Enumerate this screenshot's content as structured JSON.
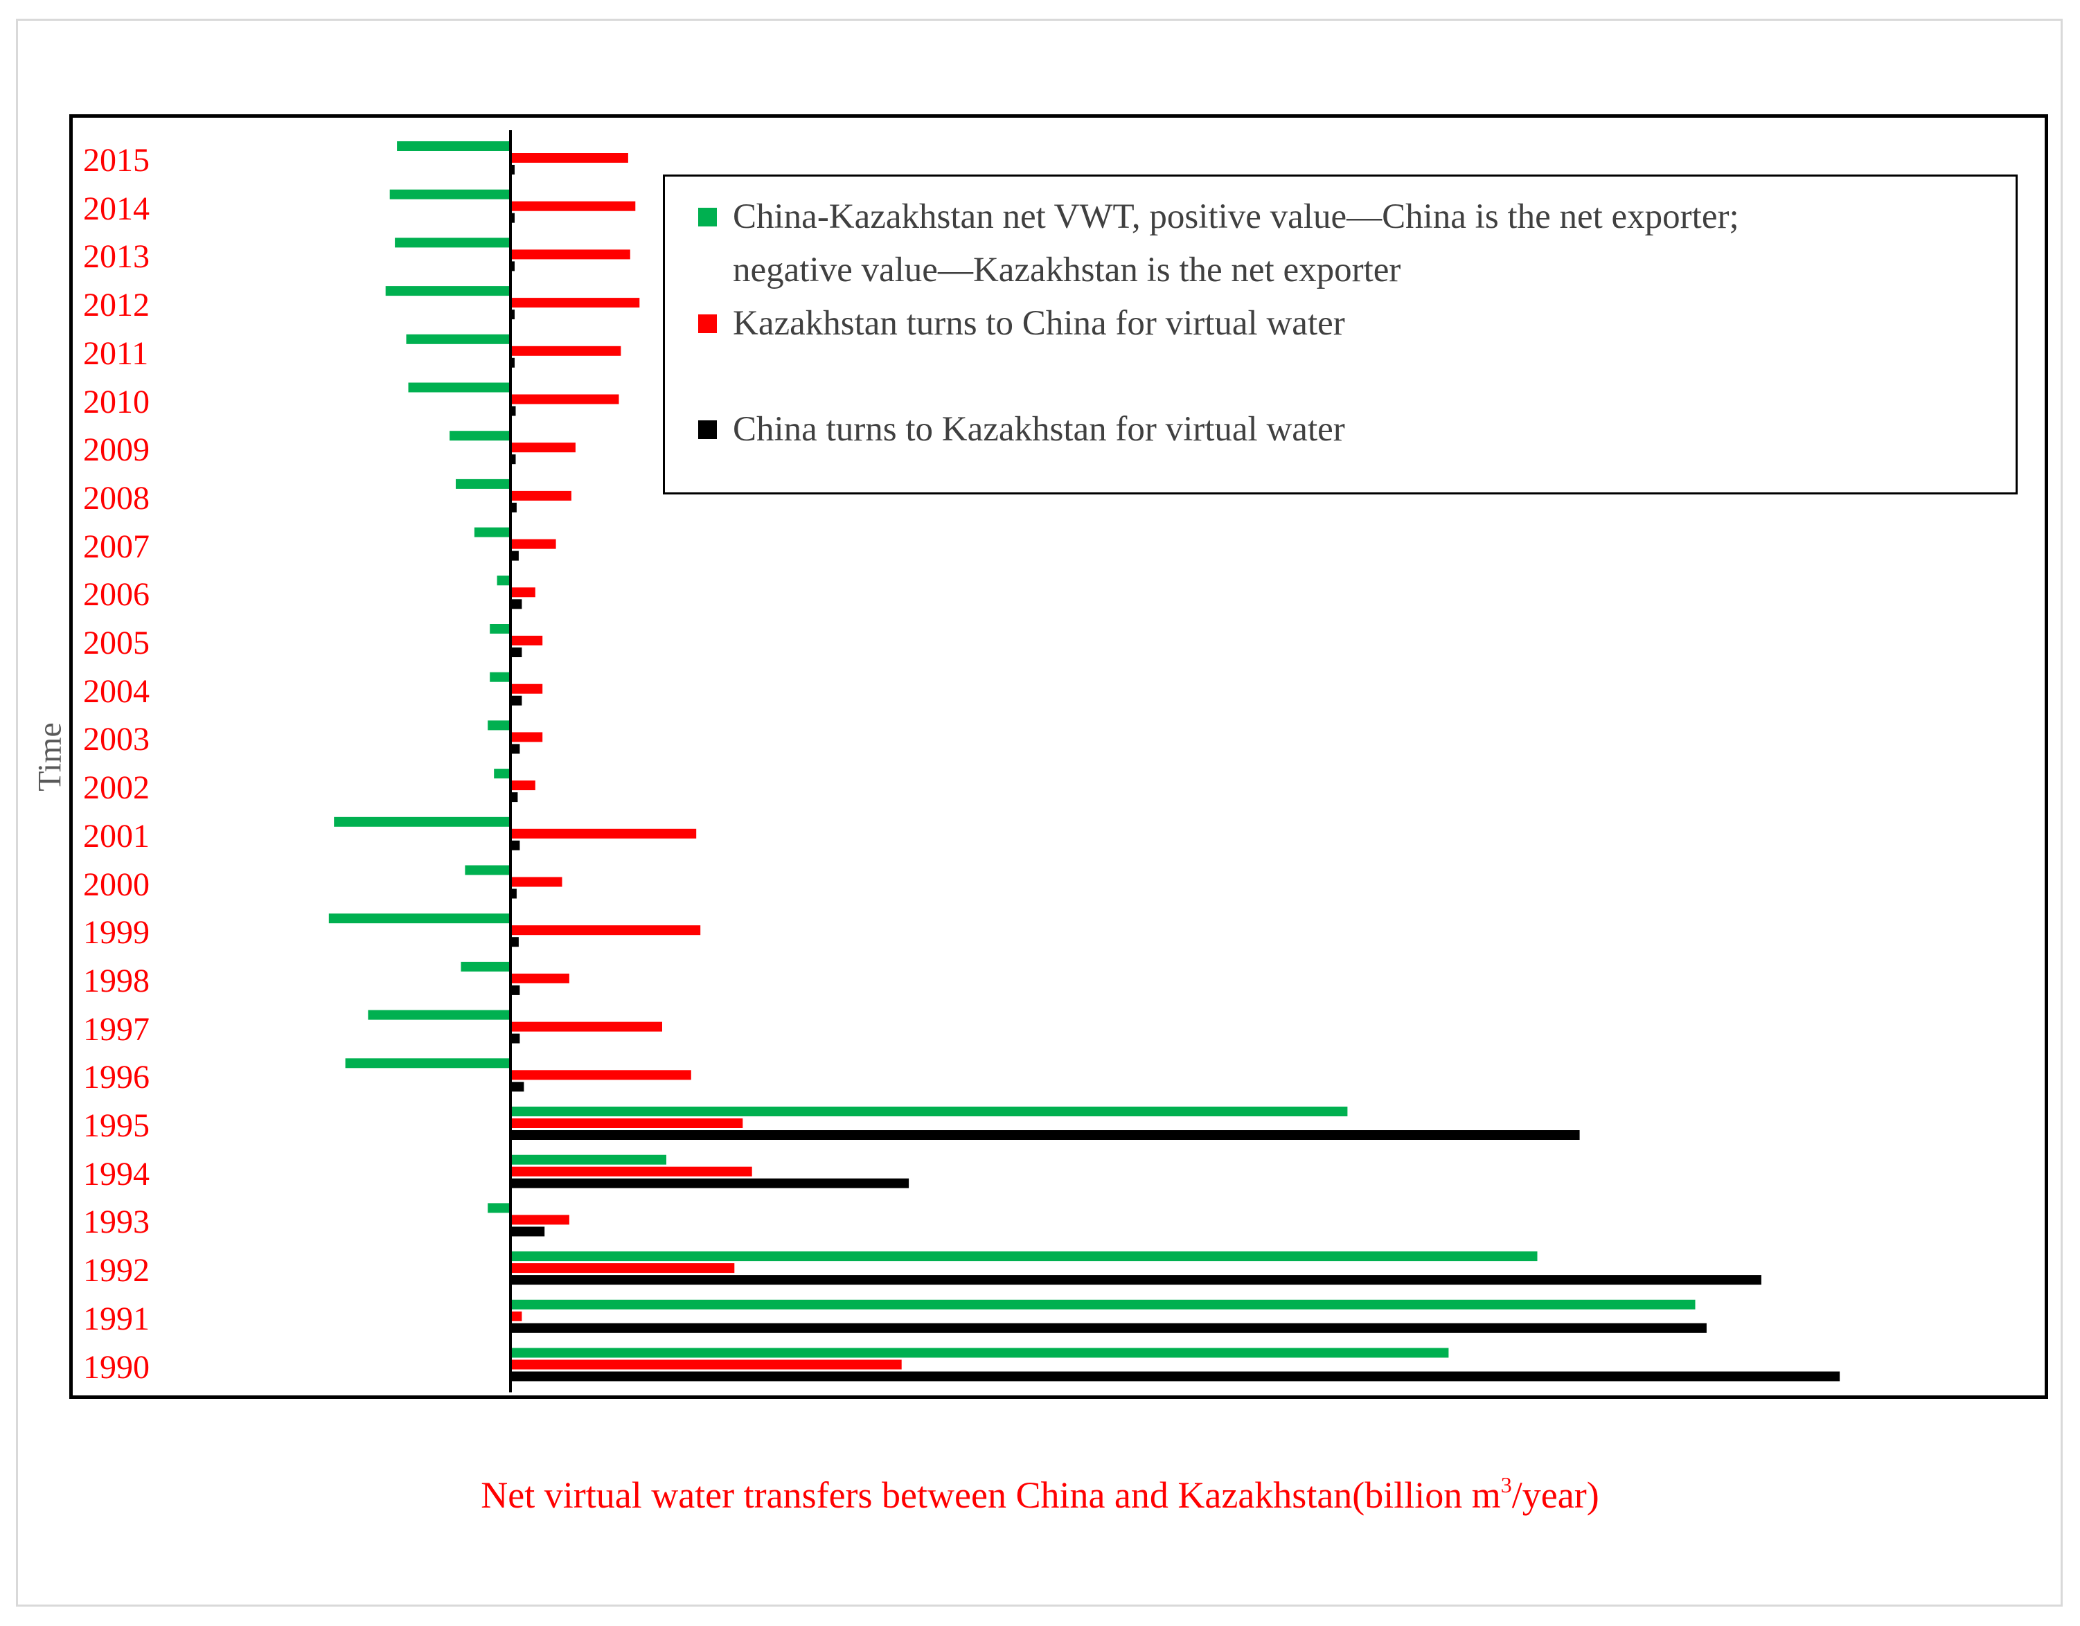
{
  "chart_data": {
    "type": "bar",
    "orientation": "horizontal",
    "title": "",
    "xlabel_main": "Net virtual water transfers between China and Kazakhstan(billion m",
    "xlabel_sup": "3",
    "xlabel_tail": "/year)",
    "ylabel": "Time",
    "categories": [
      "2015",
      "2014",
      "2013",
      "2012",
      "2011",
      "2010",
      "2009",
      "2008",
      "2007",
      "2006",
      "2005",
      "2004",
      "2003",
      "2002",
      "2001",
      "2000",
      "1999",
      "1998",
      "1997",
      "1996",
      "1995",
      "1994",
      "1993",
      "1992",
      "1991",
      "1990"
    ],
    "xlim": [
      -4.0,
      16.0
    ],
    "grid": false,
    "legend_placement": "top-right",
    "series": [
      {
        "name_line1": "China-Kazakhstan net VWT, positive value—China is the net exporter;",
        "name_line2": "negative value—Kazakhstan is the net exporter",
        "color": "#00b050",
        "values": [
          -1.1,
          -1.17,
          -1.12,
          -1.21,
          -1.01,
          -0.99,
          -0.59,
          -0.53,
          -0.35,
          -0.13,
          -0.2,
          -0.2,
          -0.22,
          -0.16,
          -1.71,
          -0.44,
          -1.76,
          -0.48,
          -1.38,
          -1.6,
          8.11,
          1.51,
          -0.22,
          9.95,
          11.48,
          9.09
        ]
      },
      {
        "name": "Kazakhstan turns to China for virtual water",
        "color": "#ff0000",
        "values": [
          1.14,
          1.21,
          1.16,
          1.25,
          1.07,
          1.05,
          0.63,
          0.59,
          0.44,
          0.24,
          0.31,
          0.31,
          0.31,
          0.24,
          1.8,
          0.5,
          1.84,
          0.57,
          1.47,
          1.75,
          2.25,
          2.34,
          0.57,
          2.17,
          0.11,
          3.79
        ]
      },
      {
        "name": "China turns to Kazakhstan for virtual water",
        "color": "#000000",
        "values": [
          0.04,
          0.04,
          0.04,
          0.04,
          0.04,
          0.05,
          0.05,
          0.06,
          0.08,
          0.11,
          0.11,
          0.11,
          0.09,
          0.07,
          0.09,
          0.06,
          0.08,
          0.09,
          0.09,
          0.13,
          10.36,
          3.86,
          0.33,
          12.12,
          11.59,
          12.88
        ]
      }
    ]
  }
}
